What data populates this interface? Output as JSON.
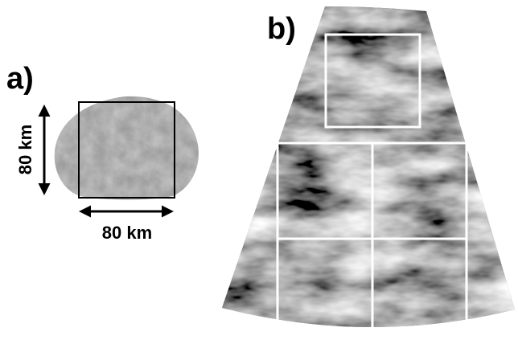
{
  "panels": [
    {
      "label": "a)",
      "scale_vertical": "80 km",
      "scale_horizontal": "80 km"
    },
    {
      "label": "b)"
    }
  ]
}
